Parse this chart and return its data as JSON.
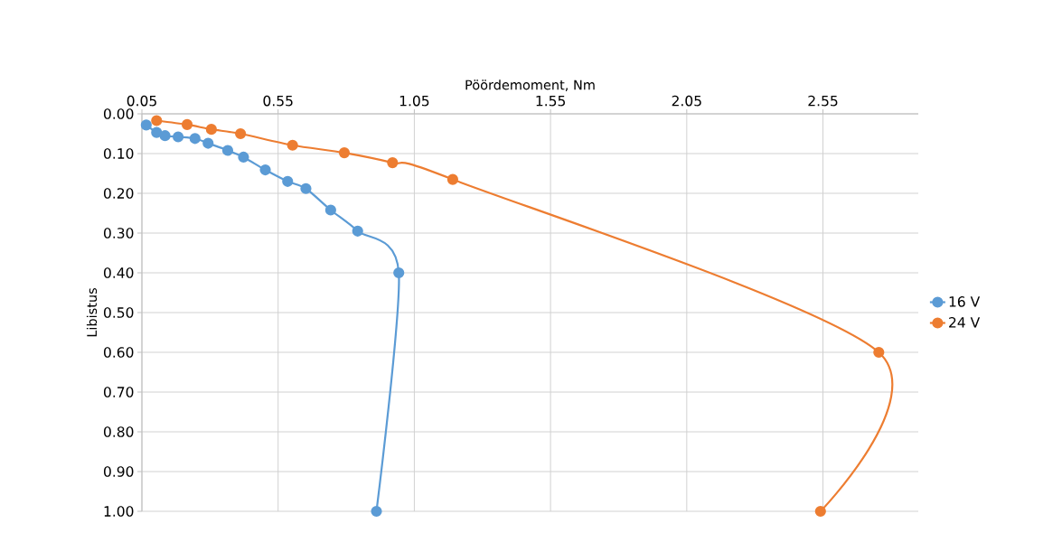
{
  "chart_data": {
    "type": "line",
    "xlabel": "Pöördemoment, Nm",
    "ylabel": "Libistus",
    "xlim": [
      0.05,
      2.9
    ],
    "xticks": [
      0.05,
      0.55,
      1.05,
      1.55,
      2.05,
      2.55
    ],
    "ylim": [
      1.0,
      0.0
    ],
    "yticks": [
      {
        "value": 0,
        "label": "0.00"
      },
      {
        "value": 0.1,
        "label": "0.10"
      },
      {
        "value": 0.2,
        "label": "0.20"
      },
      {
        "value": 0.3,
        "label": "0.30"
      },
      {
        "value": 0.4,
        "label": "0.40"
      },
      {
        "value": 0.5,
        "label": "0.50"
      },
      {
        "value": 0.6,
        "label": "0.60"
      },
      {
        "value": 0.7,
        "label": "0.70"
      },
      {
        "value": 0.8,
        "label": "0.80"
      },
      {
        "value": 0.9,
        "label": "0.90"
      },
      {
        "value": 1.0,
        "label": "1.00"
      }
    ],
    "grid": true,
    "legend": "right",
    "marker": "circle",
    "line_style": "solid",
    "series": [
      {
        "name": "16 V",
        "color": "#5b9bd5",
        "x": [
          0.066,
          0.104,
          0.135,
          0.183,
          0.245,
          0.293,
          0.365,
          0.423,
          0.503,
          0.585,
          0.652,
          0.743,
          0.842,
          0.993,
          0.911
        ],
        "values": [
          0.028,
          0.047,
          0.055,
          0.058,
          0.062,
          0.074,
          0.092,
          0.109,
          0.141,
          0.17,
          0.188,
          0.242,
          0.295,
          0.4,
          1.0
        ]
      },
      {
        "name": "24 V",
        "color": "#ed7d31",
        "x": [
          0.104,
          0.216,
          0.305,
          0.412,
          0.603,
          0.793,
          0.97,
          1.191,
          2.755,
          2.541
        ],
        "values": [
          0.017,
          0.027,
          0.039,
          0.05,
          0.079,
          0.098,
          0.123,
          0.165,
          0.6,
          1.0
        ]
      }
    ]
  }
}
